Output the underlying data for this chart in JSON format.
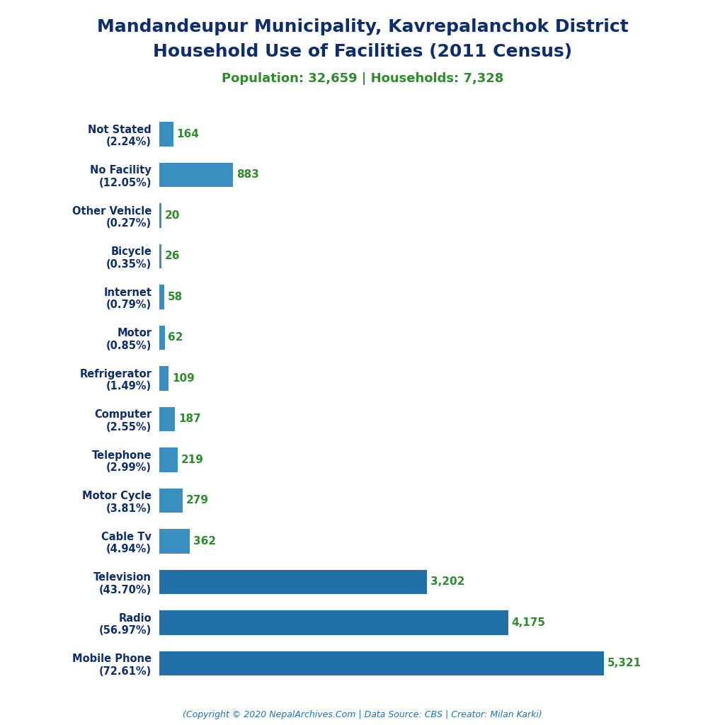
{
  "title_line1": "Mandandeupur Municipality, Kavrepalanchok District",
  "title_line2": "Household Use of Facilities (2011 Census)",
  "subtitle": "Population: 32,659 | Households: 7,328",
  "footer": "(Copyright © 2020 NepalArchives.Com | Data Source: CBS | Creator: Milan Karki)",
  "categories": [
    "Mobile Phone\n(72.61%)",
    "Radio\n(56.97%)",
    "Television\n(43.70%)",
    "Cable Tv\n(4.94%)",
    "Motor Cycle\n(3.81%)",
    "Telephone\n(2.99%)",
    "Computer\n(2.55%)",
    "Refrigerator\n(1.49%)",
    "Motor\n(0.85%)",
    "Internet\n(0.79%)",
    "Bicycle\n(0.35%)",
    "Other Vehicle\n(0.27%)",
    "No Facility\n(12.05%)",
    "Not Stated\n(2.24%)"
  ],
  "values": [
    5321,
    4175,
    3202,
    362,
    279,
    219,
    187,
    109,
    62,
    58,
    26,
    20,
    883,
    164
  ],
  "bar_color": "#3a8fc1",
  "bar_color_large": "#2171a8",
  "title_color": "#0d2d6b",
  "subtitle_color": "#2e8b2e",
  "footer_color": "#2171a8",
  "value_color": "#2e8b2e",
  "background_color": "#ffffff",
  "xlim": [
    0,
    5900
  ]
}
